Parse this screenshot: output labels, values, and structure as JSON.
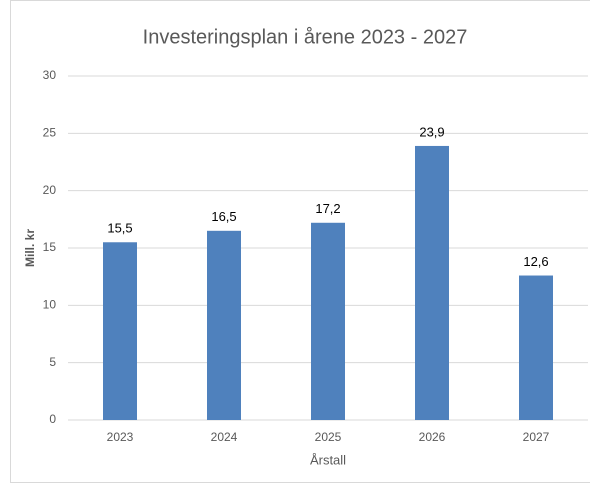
{
  "chart_data": {
    "type": "bar",
    "title": "Investeringsplan i årene 2023 - 2027",
    "y_label": "Mill. kr",
    "x_label": "Årstall",
    "categories": [
      "2023",
      "2024",
      "2025",
      "2026",
      "2027"
    ],
    "values": [
      15.5,
      16.5,
      17.2,
      23.9,
      12.6
    ],
    "value_labels": [
      "15,5",
      "16,5",
      "17,2",
      "23,9",
      "12,6"
    ],
    "color": "#4f81bd",
    "ylim": [
      0,
      30
    ],
    "yticks": [
      0,
      5,
      10,
      15,
      20,
      25,
      30
    ],
    "grid": true
  }
}
